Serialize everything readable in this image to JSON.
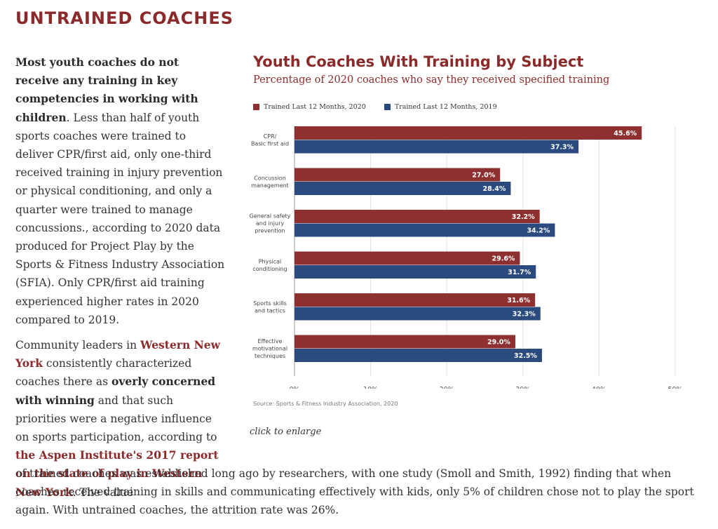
{
  "section": {
    "title": "UNTRAINED COACHES"
  },
  "para1": {
    "bold": "Most youth coaches do not receive any training in key competencies in working with children",
    "rest": ". Less than half of youth sports coaches were trained to deliver CPR/first aid, only one-third received training in injury prevention or physical conditioning, and only a quarter were trained to manage concussions., according to 2020 data produced for Project Play by the Sports & Fitness Industry Association (SFIA). Only CPR/first aid training experienced higher rates in 2020 compared to 2019."
  },
  "para2": {
    "t1": "Community leaders in ",
    "link1": "Western New York",
    "t2": " consistently characterized coaches there as ",
    "bold1": "overly concerned with winning",
    "t3": " and that such priorities were a negative influence on sports participation, according to ",
    "link2": "the Aspen Institute's 2017 report on the state of play in Western New York",
    "t4": ". The value"
  },
  "bottom_text": "of trained coaches was established long ago by researchers, with one study (Smoll and Smith, 1992) finding that when coaches received training in skills and communicating effectively with kids, only 5% of children chose not to play the sport again. With untrained coaches, the attrition rate was 26%.",
  "click_to_enlarge": "click to enlarge",
  "colors": {
    "series_2020": "#8e3030",
    "series_2019": "#2b4a7e",
    "title": "#8b2a2a"
  },
  "chart_data": {
    "type": "bar",
    "orientation": "horizontal",
    "title": "Youth Coaches With Training by Subject",
    "subtitle": "Percentage of 2020 coaches who say they received specified training",
    "categories": [
      [
        "CPR/",
        "Basic first aid"
      ],
      [
        "Concussion",
        "management"
      ],
      [
        "General safety",
        "and injury",
        "prevention"
      ],
      [
        "Physical",
        "conditioning"
      ],
      [
        "Sports skills",
        "and tactics"
      ],
      [
        "Effective",
        "motivational",
        "techniques"
      ]
    ],
    "series": [
      {
        "name": "Trained Last 12 Months, 2020",
        "values": [
          45.6,
          27.0,
          32.2,
          29.6,
          31.6,
          29.0
        ],
        "labels": [
          "45.6%",
          "27.0%",
          "32.2%",
          "29.6%",
          "31.6%",
          "29.0%"
        ]
      },
      {
        "name": "Trained Last 12 Months, 2019",
        "values": [
          37.3,
          28.4,
          34.2,
          31.7,
          32.3,
          32.5
        ],
        "labels": [
          "37.3%",
          "28.4%",
          "34.2%",
          "31.7%",
          "32.3%",
          "32.5%"
        ]
      }
    ],
    "xlim": [
      0,
      50
    ],
    "xticks": [
      "0%",
      "10%",
      "20%",
      "30%",
      "40%",
      "50%"
    ],
    "grid": true,
    "legend": "top-left",
    "source": "Source: Sports & Fitness Industry Association, 2020"
  }
}
